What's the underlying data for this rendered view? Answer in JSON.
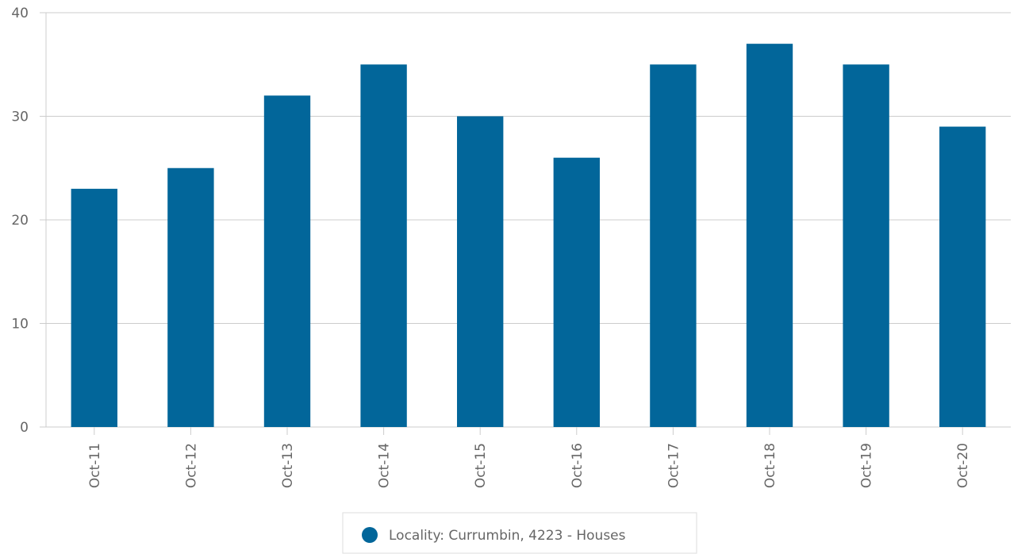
{
  "chart_data": {
    "type": "bar",
    "categories": [
      "Oct-11",
      "Oct-12",
      "Oct-13",
      "Oct-14",
      "Oct-15",
      "Oct-16",
      "Oct-17",
      "Oct-18",
      "Oct-19",
      "Oct-20"
    ],
    "series": [
      {
        "name": "Locality: Currumbin, 4223 - Houses",
        "color": "#02669a",
        "values": [
          23,
          25,
          32,
          35,
          30,
          26,
          35,
          37,
          35,
          29
        ]
      }
    ],
    "ylim": [
      0,
      40
    ],
    "yticks": [
      0,
      10,
      20,
      30,
      40
    ],
    "grid": true,
    "legend": "bottom"
  }
}
